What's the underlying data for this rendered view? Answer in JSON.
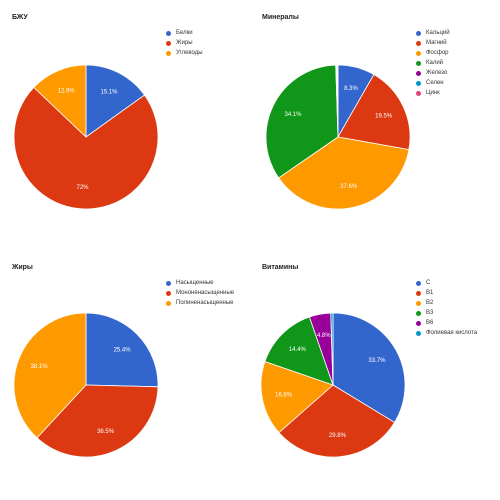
{
  "chart_data": [
    {
      "type": "pie",
      "title": "БЖУ",
      "legend_position": "right",
      "slices": [
        {
          "label": "Белки",
          "value": 15.1,
          "value_label": "15.1%",
          "color": "#3366cc"
        },
        {
          "label": "Жиры",
          "value": 72,
          "value_label": "72%",
          "color": "#dc3912"
        },
        {
          "label": "Углеводы",
          "value": 12.9,
          "value_label": "12.9%",
          "color": "#ff9900"
        }
      ]
    },
    {
      "type": "pie",
      "title": "Минералы",
      "legend_position": "right",
      "slices": [
        {
          "label": "Кальций",
          "value": 8.3,
          "value_label": "8.3%",
          "color": "#3366cc"
        },
        {
          "label": "Магний",
          "value": 19.5,
          "value_label": "19.5%",
          "color": "#dc3912"
        },
        {
          "label": "Фосфор",
          "value": 37.6,
          "value_label": "37.6%",
          "color": "#ff9900"
        },
        {
          "label": "Калий",
          "value": 34.1,
          "value_label": "34.1%",
          "color": "#109618"
        },
        {
          "label": "Железо",
          "value": 0.2,
          "value_label": "",
          "color": "#990099"
        },
        {
          "label": "Селен",
          "value": 0.1,
          "value_label": "",
          "color": "#0099c6"
        },
        {
          "label": "Цинк",
          "value": 0.2,
          "value_label": "",
          "color": "#dd4477"
        }
      ]
    },
    {
      "type": "pie",
      "title": "Жиры",
      "legend_position": "right",
      "slices": [
        {
          "label": "Насыщенные",
          "value": 25.4,
          "value_label": "25.4%",
          "color": "#3366cc"
        },
        {
          "label": "Мононенасыщенные",
          "value": 36.5,
          "value_label": "36.5%",
          "color": "#dc3912"
        },
        {
          "label": "Полиненасыщенные",
          "value": 38.1,
          "value_label": "38.1%",
          "color": "#ff9900"
        }
      ]
    },
    {
      "type": "pie",
      "title": "Витамины",
      "legend_position": "right",
      "slices": [
        {
          "label": "C",
          "value": 33.7,
          "value_label": "33.7%",
          "color": "#3366cc"
        },
        {
          "label": "B1",
          "value": 29.8,
          "value_label": "29.8%",
          "color": "#dc3912"
        },
        {
          "label": "B2",
          "value": 16.8,
          "value_label": "16.8%",
          "color": "#ff9900"
        },
        {
          "label": "B3",
          "value": 14.4,
          "value_label": "14.4%",
          "color": "#109618"
        },
        {
          "label": "B6",
          "value": 4.8,
          "value_label": "4.8%",
          "color": "#990099"
        },
        {
          "label": "Фолиевая кислота",
          "value": 0.5,
          "value_label": "",
          "color": "#0099c6"
        }
      ]
    }
  ]
}
